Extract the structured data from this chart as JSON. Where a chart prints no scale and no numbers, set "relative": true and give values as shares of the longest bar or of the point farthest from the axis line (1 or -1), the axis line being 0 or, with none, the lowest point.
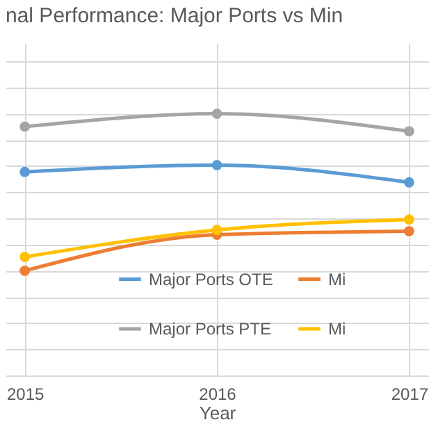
{
  "chart_data": {
    "type": "line",
    "title": "nal Performance: Major Ports vs Min",
    "xlabel": "Year",
    "categories": [
      "2015",
      "2016",
      "2017"
    ],
    "relative": true,
    "grid": true,
    "marker": "circle",
    "legend": "bottom right",
    "series": [
      {
        "name": "Major Ports OTE",
        "color": "#5b9bd5",
        "values": [
          0.778,
          0.804,
          0.738
        ]
      },
      {
        "name": "Mi",
        "color": "#ed7d31",
        "values": [
          0.4,
          0.538,
          0.551
        ]
      },
      {
        "name": "Major Ports PTE",
        "color": "#a5a5a5",
        "values": [
          0.951,
          1,
          0.933
        ]
      },
      {
        "name": "Mi",
        "color": "#ffc000",
        "values": [
          0.453,
          0.556,
          0.596
        ]
      }
    ]
  }
}
